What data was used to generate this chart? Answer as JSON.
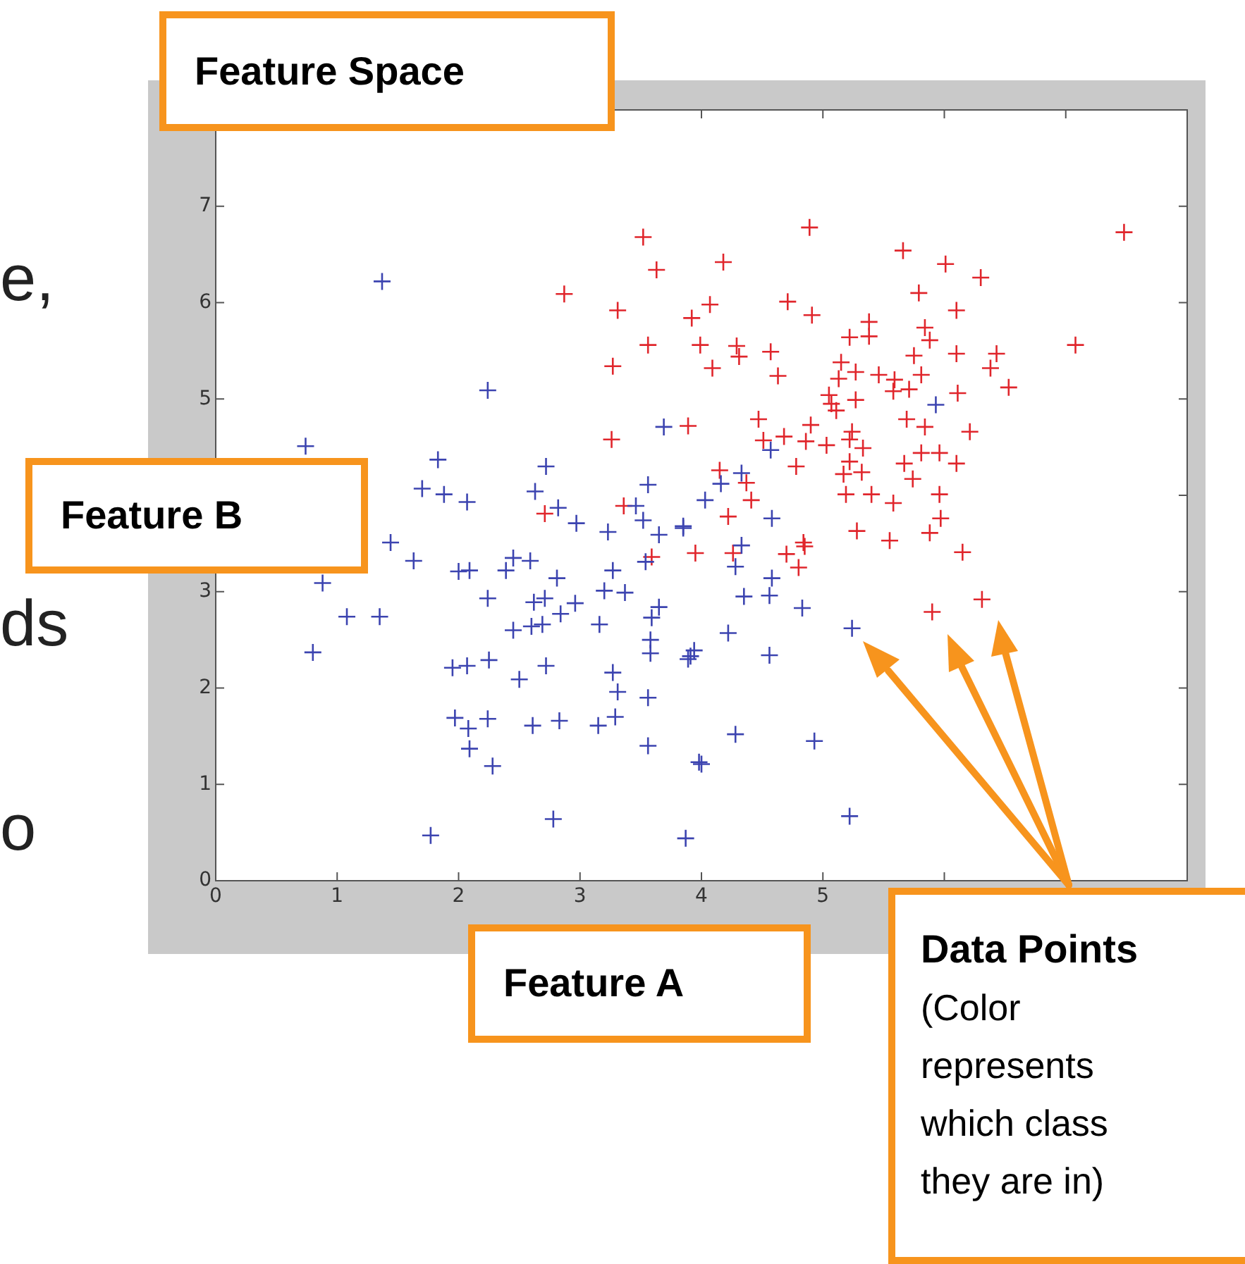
{
  "chart_data": {
    "type": "scatter",
    "title": "Feature Space",
    "xlabel": "Feature A",
    "ylabel": "Feature B",
    "annotations": [
      "e,",
      "ds",
      "o",
      "Data Points",
      "(Color represents which class they are in)"
    ],
    "xlim": [
      0,
      8
    ],
    "ylim": [
      0,
      8
    ],
    "xticks": [
      0,
      1,
      2,
      3,
      4,
      5,
      {
        "value": 6,
        "label": null
      },
      {
        "value": 7,
        "label": null
      }
    ],
    "yticks": [
      0,
      1,
      2,
      3,
      {
        "value": 4,
        "label": null
      },
      5,
      6,
      7
    ],
    "grid": false,
    "legend": false,
    "marker": "cross",
    "series": [
      {
        "color": "#3c44b0",
        "x": [
          1.37,
          2.24,
          0.74,
          1.83,
          1.7,
          1.88,
          2.07,
          1.44,
          1.63,
          0.88,
          1.08,
          1.35,
          0.8,
          2.0,
          2.09,
          2.24,
          2.39,
          2.45,
          2.59,
          2.81,
          2.62,
          2.71,
          2.45,
          2.6,
          2.69,
          2.84,
          2.96,
          2.72,
          2.63,
          2.82,
          2.97,
          3.23,
          3.27,
          3.2,
          3.37,
          3.16,
          3.56,
          3.46,
          3.52,
          3.65,
          3.54,
          3.85,
          3.69,
          3.65,
          3.59,
          3.58,
          3.58,
          3.89,
          3.94,
          1.95,
          2.07,
          2.25,
          2.5,
          2.72,
          3.27,
          3.31,
          3.56,
          1.97,
          2.08,
          2.24,
          2.61,
          2.83,
          3.15,
          3.29,
          2.09,
          2.28,
          3.56,
          3.98,
          2.78,
          1.77,
          3.87,
          4.57,
          4.33,
          4.16,
          4.03,
          4.58,
          3.85,
          4.33,
          4.28,
          4.58,
          4.35,
          4.56,
          4.83,
          4.22,
          3.91,
          4.56,
          5.24,
          4.28,
          4.93,
          4.0,
          5.22,
          5.93
        ],
        "values": [
          6.22,
          5.09,
          4.51,
          4.37,
          4.07,
          4.01,
          3.93,
          3.51,
          3.32,
          3.09,
          2.74,
          2.74,
          2.37,
          3.21,
          3.22,
          2.93,
          3.22,
          3.35,
          3.32,
          3.14,
          2.89,
          2.93,
          2.6,
          2.64,
          2.66,
          2.77,
          2.88,
          4.3,
          4.04,
          3.87,
          3.71,
          3.62,
          3.22,
          3.01,
          2.99,
          2.66,
          4.11,
          3.89,
          3.74,
          3.59,
          3.31,
          3.66,
          4.71,
          2.84,
          2.73,
          2.5,
          2.36,
          2.3,
          2.39,
          2.21,
          2.23,
          2.29,
          2.09,
          2.23,
          2.16,
          1.96,
          1.9,
          1.69,
          1.58,
          1.68,
          1.61,
          1.66,
          1.61,
          1.7,
          1.37,
          1.19,
          1.4,
          1.23,
          0.64,
          0.47,
          0.44,
          4.47,
          4.23,
          4.12,
          3.95,
          3.76,
          3.68,
          3.48,
          3.26,
          3.14,
          2.95,
          2.96,
          2.83,
          2.57,
          2.33,
          2.34,
          2.62,
          1.52,
          1.45,
          1.21,
          0.67,
          4.94
        ]
      },
      {
        "color": "#e0262c",
        "x": [
          3.52,
          3.63,
          2.87,
          3.31,
          3.92,
          3.56,
          3.99,
          3.27,
          3.26,
          3.89,
          2.71,
          3.36,
          3.95,
          3.59,
          4.89,
          4.18,
          5.66,
          6.01,
          6.3,
          7.48,
          5.79,
          4.07,
          4.71,
          4.91,
          6.1,
          5.38,
          5.22,
          5.38,
          5.84,
          5.88,
          7.08,
          4.29,
          4.31,
          4.57,
          4.09,
          4.63,
          5.75,
          6.1,
          6.43,
          6.38,
          5.15,
          5.27,
          5.13,
          5.46,
          5.59,
          5.81,
          5.58,
          5.71,
          6.11,
          6.53,
          5.05,
          5.07,
          5.11,
          5.27,
          4.47,
          4.9,
          5.69,
          5.24,
          5.84,
          6.21,
          4.51,
          4.68,
          4.86,
          5.03,
          5.22,
          5.33,
          5.81,
          5.96,
          6.1,
          5.67,
          5.22,
          5.17,
          5.32,
          4.78,
          5.74,
          4.37,
          4.15,
          4.41,
          4.22,
          5.19,
          5.4,
          5.58,
          5.96,
          5.97,
          5.28,
          5.88,
          5.55,
          4.84,
          4.26,
          4.7,
          4.85,
          4.8,
          6.15,
          5.9,
          6.31
        ],
        "values": [
          6.68,
          6.34,
          6.09,
          5.92,
          5.84,
          5.56,
          5.56,
          5.34,
          4.58,
          4.72,
          3.81,
          3.89,
          3.4,
          3.36,
          6.78,
          6.42,
          6.54,
          6.4,
          6.26,
          6.73,
          6.1,
          5.98,
          6.01,
          5.87,
          5.92,
          5.8,
          5.64,
          5.65,
          5.74,
          5.61,
          5.56,
          5.55,
          5.44,
          5.49,
          5.32,
          5.24,
          5.45,
          5.47,
          5.47,
          5.32,
          5.38,
          5.28,
          5.21,
          5.25,
          5.2,
          5.25,
          5.08,
          5.1,
          5.06,
          5.12,
          5.04,
          4.95,
          4.88,
          4.99,
          4.79,
          4.73,
          4.79,
          4.66,
          4.71,
          4.66,
          4.57,
          4.61,
          4.56,
          4.52,
          4.58,
          4.49,
          4.44,
          4.44,
          4.33,
          4.33,
          4.35,
          4.22,
          4.24,
          4.3,
          4.17,
          4.13,
          4.26,
          3.95,
          3.78,
          4.01,
          4.01,
          3.92,
          4.01,
          3.76,
          3.63,
          3.61,
          3.53,
          3.51,
          3.4,
          3.39,
          3.47,
          3.25,
          3.41,
          2.79,
          2.92
        ]
      }
    ]
  }
}
